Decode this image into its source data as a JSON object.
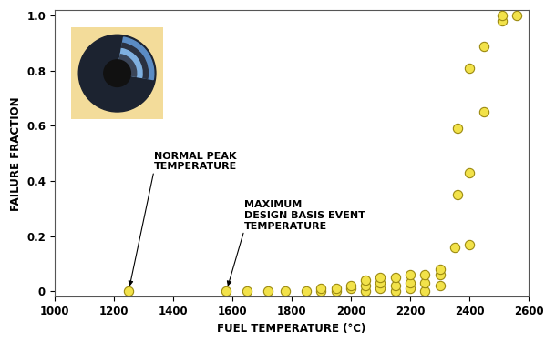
{
  "chart_data": {
    "type": "scatter",
    "x_label": "FUEL TEMPERATURE (°C)",
    "y_label": "FAILURE FRACTION",
    "x": [
      1250,
      1580,
      1650,
      1720,
      1780,
      1850,
      1900,
      1900,
      1950,
      1950,
      2000,
      2000,
      2050,
      2050,
      2050,
      2100,
      2100,
      2100,
      2150,
      2150,
      2150,
      2200,
      2200,
      2200,
      2250,
      2250,
      2250,
      2300,
      2300,
      2300,
      2350,
      2360,
      2360,
      2400,
      2400,
      2400,
      2450,
      2450,
      2510,
      2510,
      2560
    ],
    "values": [
      0,
      0,
      0,
      0,
      0,
      0,
      0,
      0.01,
      0,
      0.01,
      0.01,
      0.02,
      0,
      0.02,
      0.04,
      0.01,
      0.03,
      0.05,
      0,
      0.02,
      0.05,
      0.01,
      0.03,
      0.06,
      0,
      0.03,
      0.06,
      0.02,
      0.06,
      0.08,
      0.16,
      0.35,
      0.59,
      0.17,
      0.43,
      0.81,
      0.65,
      0.89,
      0.98,
      1.0,
      1.0
    ],
    "color": "#f2e24a",
    "marker": "o",
    "xlim": [
      1000,
      2600
    ],
    "xticks": [
      1000,
      1200,
      1400,
      1600,
      1800,
      2000,
      2200,
      2400,
      2600
    ],
    "ylim": [
      -0.02,
      1.02
    ],
    "yticks": [
      0,
      0.2,
      0.4,
      0.6,
      0.8,
      1.0
    ],
    "annotations": [
      {
        "text": "NORMAL PEAK\nTEMPERATURE",
        "x": 1250,
        "y": 0
      },
      {
        "text": "MAXIMUM\nDESIGN BASIS EVENT\nTEMPERATURE",
        "x": 1580,
        "y": 0
      }
    ],
    "grid": false
  }
}
